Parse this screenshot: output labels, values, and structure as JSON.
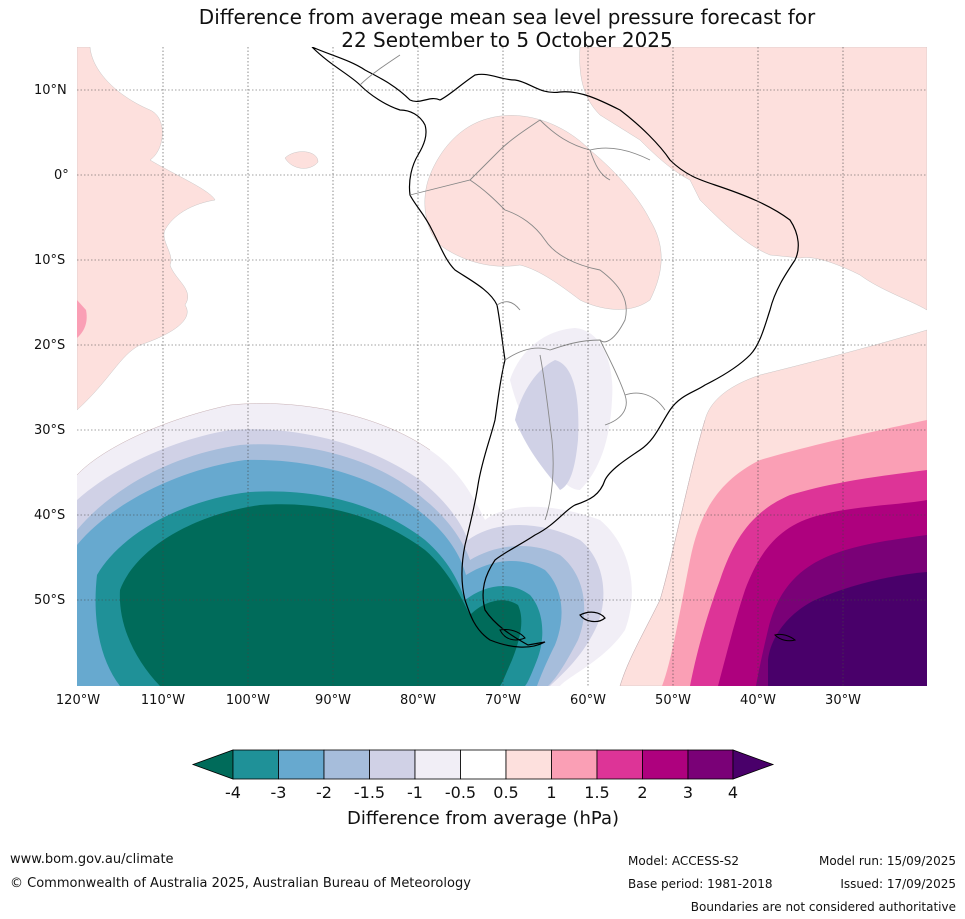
{
  "title": {
    "line1": "Difference from average mean sea level pressure forecast for",
    "line2": "22 September to 5 October 2025"
  },
  "map": {
    "region": "South America",
    "lat_labels": [
      "10°N",
      "0°",
      "10°S",
      "20°S",
      "30°S",
      "40°S",
      "50°S"
    ],
    "lon_labels": [
      "120°W",
      "110°W",
      "100°W",
      "90°W",
      "80°W",
      "70°W",
      "60°W",
      "50°W",
      "40°W",
      "30°W"
    ],
    "colors": {
      "neg4": "#006b5a",
      "neg3": "#1f9198",
      "neg2": "#67a9cf",
      "neg15": "#a6bddb",
      "neg1": "#d0d1e6",
      "neg05": "#f1eef6",
      "zero": "#ffffff",
      "pos05": "#fde0dd",
      "pos1": "#fa9fb5",
      "pos15": "#dd3497",
      "pos2": "#ae017e",
      "pos3": "#7a0177",
      "pos4": "#49006a"
    }
  },
  "colorbar": {
    "ticks": [
      "-4",
      "-3",
      "-2",
      "-1.5",
      "-1",
      "-0.5",
      "0.5",
      "1",
      "1.5",
      "2",
      "3",
      "4"
    ],
    "label": "Difference from average (hPa)"
  },
  "footer": {
    "website": "www.bom.gov.au/climate",
    "copyright": "© Commonwealth of Australia 2025, Australian Bureau of Meteorology",
    "model": "Model: ACCESS-S2",
    "base_period": "Base period: 1981-2018",
    "model_run": "Model run: 15/09/2025",
    "issued": "Issued: 17/09/2025",
    "boundaries": "Boundaries are not considered authoritative"
  }
}
